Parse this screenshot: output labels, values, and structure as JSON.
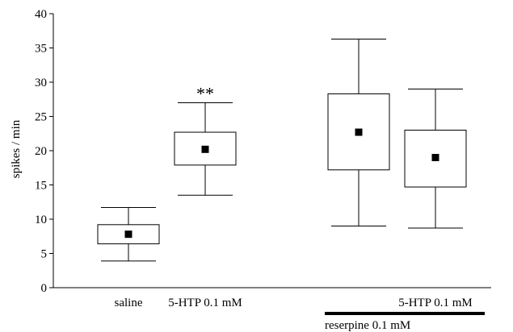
{
  "chart_data": {
    "type": "box",
    "title": "",
    "xlabel": "",
    "ylabel": "spikes / min",
    "ylim": [
      0,
      40
    ],
    "yticks": [
      0,
      5,
      10,
      15,
      20,
      25,
      30,
      35,
      40
    ],
    "grid": false,
    "categories": [
      "saline",
      "5-HTP 0.1 mM",
      "",
      "5-HTP 0.1 mM"
    ],
    "boxes": [
      {
        "mean": 7.8,
        "box_low": 6.4,
        "box_high": 9.2,
        "whisker_low": 3.9,
        "whisker_high": 11.7
      },
      {
        "mean": 20.2,
        "box_low": 17.9,
        "box_high": 22.7,
        "whisker_low": 13.5,
        "whisker_high": 27.0
      },
      {
        "mean": 22.7,
        "box_low": 17.2,
        "box_high": 28.3,
        "whisker_low": 9.0,
        "whisker_high": 36.3
      },
      {
        "mean": 19.0,
        "box_low": 14.7,
        "box_high": 23.0,
        "whisker_low": 8.7,
        "whisker_high": 29.0
      }
    ],
    "annotations": [
      {
        "category_index": 1,
        "text": "**"
      }
    ],
    "group_bar": {
      "label": "reserpine 0.1 mM",
      "category_indices": [
        2,
        3
      ]
    }
  }
}
